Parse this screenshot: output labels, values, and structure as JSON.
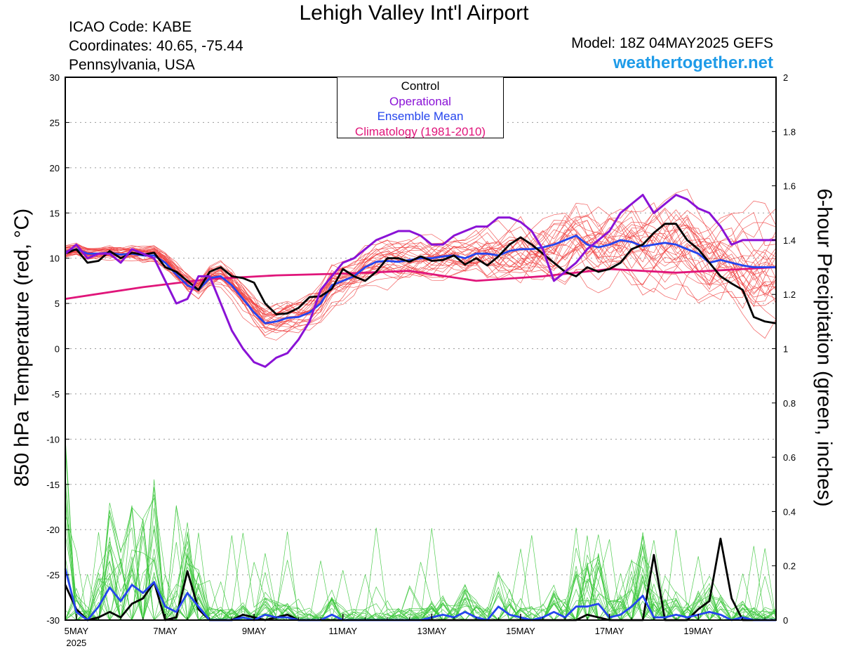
{
  "header": {
    "title": "Lehigh Valley Int'l Airport",
    "icao": "ICAO Code: KABE",
    "coords": "Coordinates: 40.65, -75.44",
    "region": "Pennsylvania, USA",
    "model": "Model: 18Z 04MAY2025 GEFS",
    "site": "weathertogether.net"
  },
  "legend": {
    "items": [
      {
        "label": "Control",
        "color": "#000000"
      },
      {
        "label": "Operational",
        "color": "#8a12d6"
      },
      {
        "label": "Ensemble Mean",
        "color": "#2444ee"
      },
      {
        "label": "Climatology (1981-2010)",
        "color": "#e0157a"
      }
    ]
  },
  "chart_data": {
    "type": "line",
    "ylabel": "850 hPa Temperature (red, °C)",
    "y2label": "6-hour Precipitation (green, inches)",
    "ylim": [
      -30,
      30
    ],
    "y2lim": [
      0,
      2
    ],
    "y_ticks": [
      "30",
      "25",
      "20",
      "15",
      "10",
      "5",
      "0",
      "-5",
      "-10",
      "-15",
      "-20",
      "-25",
      "-30"
    ],
    "y2_ticks": [
      "2",
      "1.8",
      "1.6",
      "1.4",
      "1.2",
      "1",
      "0.8",
      "0.6",
      "0.4",
      "0.2",
      "0"
    ],
    "x_ticks": [
      {
        "day": 0,
        "label": "5MAY",
        "sub": "2025"
      },
      {
        "day": 2,
        "label": "7MAY"
      },
      {
        "day": 4,
        "label": "9MAY"
      },
      {
        "day": 6,
        "label": "11MAY"
      },
      {
        "day": 8,
        "label": "13MAY"
      },
      {
        "day": 10,
        "label": "15MAY"
      },
      {
        "day": 12,
        "label": "17MAY"
      },
      {
        "day": 14,
        "label": "19MAY"
      }
    ],
    "x_range_days": [
      -0.25,
      15.75
    ],
    "grid": "dotted horizontal",
    "colors": {
      "members": "#f04040",
      "precip_members": "#3ec83e",
      "control": "#000000",
      "operational": "#8a12d6",
      "mean": "#2444ee",
      "climatology": "#e0157a"
    },
    "temperature_series": [
      {
        "name": "Control",
        "color": "#000000",
        "x": [
          -0.25,
          0,
          0.25,
          0.5,
          0.75,
          1,
          1.25,
          1.5,
          1.75,
          2,
          2.25,
          2.5,
          2.75,
          3,
          3.25,
          3.5,
          3.75,
          4,
          4.25,
          4.5,
          4.75,
          5,
          5.25,
          5.5,
          5.75,
          6,
          6.25,
          6.5,
          6.75,
          7,
          7.25,
          7.5,
          7.75,
          8,
          8.25,
          8.5,
          8.75,
          9,
          9.25,
          9.5,
          9.75,
          10,
          10.25,
          10.5,
          10.75,
          11,
          11.25,
          11.5,
          11.75,
          12,
          12.25,
          12.5,
          12.75,
          13,
          13.25,
          13.5,
          13.75,
          14,
          14.25,
          14.5,
          14.75,
          15,
          15.25,
          15.5,
          15.75
        ],
        "y": [
          10.5,
          11,
          9.5,
          9.7,
          10.8,
          10,
          10.6,
          10.4,
          10.6,
          9,
          8.5,
          7.5,
          6.5,
          8.5,
          9,
          8,
          7.8,
          7.3,
          5,
          3.8,
          3.9,
          4.5,
          5.7,
          5.8,
          6.6,
          8.8,
          8,
          7.5,
          8.5,
          10,
          10,
          9.6,
          10.2,
          9.7,
          9.8,
          10.3,
          9.3,
          10,
          9.2,
          10.2,
          11.5,
          12.3,
          11.5,
          10.5,
          9.5,
          8.5,
          8,
          9,
          8.5,
          8.8,
          9.5,
          11,
          11.5,
          12.8,
          13.8,
          13.8,
          12,
          11,
          9.5,
          8,
          7.2,
          6.5,
          3.5,
          3,
          2.8
        ]
      },
      {
        "name": "Operational",
        "color": "#8a12d6",
        "x": [
          -0.25,
          0,
          0.25,
          0.5,
          0.75,
          1,
          1.25,
          1.5,
          1.75,
          2,
          2.25,
          2.5,
          2.75,
          3,
          3.25,
          3.5,
          3.75,
          4,
          4.25,
          4.5,
          4.75,
          5,
          5.25,
          5.5,
          5.75,
          6,
          6.25,
          6.5,
          6.75,
          7,
          7.25,
          7.5,
          7.75,
          8,
          8.25,
          8.5,
          8.75,
          9,
          9.25,
          9.5,
          9.75,
          10,
          10.25,
          10.5,
          10.75,
          11,
          11.25,
          11.5,
          11.75,
          12,
          12.25,
          12.5,
          12.75,
          13,
          13.25,
          13.5,
          13.75,
          14,
          14.25,
          14.5,
          14.75,
          15,
          15.25,
          15.5,
          15.75
        ],
        "y": [
          10.5,
          11.5,
          10,
          10.5,
          10.5,
          9.5,
          11,
          10.5,
          10,
          7.5,
          5,
          5.5,
          8,
          8,
          5,
          2,
          0,
          -1.5,
          -2,
          -1,
          -0.5,
          1,
          3,
          6.5,
          8,
          9.5,
          10,
          11,
          12,
          12.5,
          13,
          13,
          12.5,
          11.5,
          11.5,
          12.5,
          13,
          13.5,
          13.5,
          14.5,
          14.5,
          14,
          13,
          11,
          7.5,
          8.5,
          9.5,
          11,
          12,
          13,
          15,
          16,
          17,
          15,
          16,
          17,
          16.5,
          15.5,
          15,
          13.5,
          11.5,
          12,
          12,
          12,
          12
        ]
      },
      {
        "name": "Ensemble Mean",
        "color": "#2444ee",
        "x": [
          -0.25,
          0,
          0.25,
          0.5,
          0.75,
          1,
          1.25,
          1.5,
          1.75,
          2,
          2.25,
          2.5,
          2.75,
          3,
          3.25,
          3.5,
          3.75,
          4,
          4.25,
          4.5,
          4.75,
          5,
          5.25,
          5.5,
          5.75,
          6,
          6.25,
          6.5,
          6.75,
          7,
          7.25,
          7.5,
          7.75,
          8,
          8.25,
          8.5,
          8.75,
          9,
          9.25,
          9.5,
          9.75,
          10,
          10.25,
          10.5,
          10.75,
          11,
          11.25,
          11.5,
          11.75,
          12,
          12.25,
          12.5,
          12.75,
          13,
          13.25,
          13.5,
          13.75,
          14,
          14.25,
          14.5,
          14.75,
          15,
          15.25,
          15.5,
          15.75
        ],
        "y": [
          10.7,
          11,
          10.5,
          10.5,
          10.6,
          10.4,
          10.5,
          10.3,
          10.3,
          9.5,
          8.2,
          7,
          6.5,
          7.8,
          8,
          7,
          5.5,
          4,
          2.8,
          3,
          3.4,
          3.5,
          4,
          5,
          7,
          7.5,
          8,
          9,
          9.6,
          9.7,
          9.6,
          9.8,
          10,
          10,
          10.2,
          10.3,
          10,
          10.5,
          10.5,
          10.3,
          10.8,
          11,
          11,
          11.2,
          11.5,
          12,
          12.5,
          11.5,
          11.2,
          11.5,
          12,
          11.8,
          11.3,
          11.5,
          11.7,
          11.5,
          11,
          10.5,
          9.5,
          9.8,
          9.5,
          9.2,
          9,
          9,
          9
        ]
      },
      {
        "name": "Climatology (1981-2010)",
        "color": "#e0157a",
        "x": [
          -0.25,
          1.5,
          3,
          4.5,
          6,
          7.5,
          9,
          10.5,
          12,
          13.5,
          15,
          15.75
        ],
        "y": [
          5.5,
          6.8,
          7.7,
          8.1,
          8.3,
          8.6,
          7.5,
          8,
          8.8,
          8.4,
          8.8,
          9
        ]
      }
    ],
    "precip_series": [
      {
        "name": "Control",
        "color": "#000000",
        "x": [
          -0.25,
          0,
          0.25,
          0.5,
          0.75,
          1,
          1.25,
          1.5,
          1.75,
          2,
          2.25,
          2.5,
          2.75,
          3,
          3.25,
          3.5,
          3.75,
          4,
          4.25,
          4.5,
          4.75,
          5,
          5.25,
          5.5,
          5.75,
          6,
          6.25,
          6.5,
          6.75,
          7,
          7.25,
          7.5,
          7.75,
          8,
          8.25,
          8.5,
          8.75,
          9,
          9.25,
          9.5,
          9.75,
          10,
          10.25,
          10.5,
          10.75,
          11,
          11.25,
          11.5,
          11.75,
          12,
          12.25,
          12.5,
          12.75,
          13,
          13.25,
          13.5,
          13.75,
          14,
          14.25,
          14.5,
          14.75,
          15,
          15.25,
          15.5,
          15.75
        ],
        "y": [
          0.13,
          0.04,
          0,
          0.01,
          0.03,
          0.01,
          0.06,
          0.08,
          0.14,
          0,
          0.01,
          0.18,
          0.04,
          0,
          0,
          0,
          0.02,
          0.01,
          0,
          0.01,
          0.02,
          0,
          0,
          0,
          0,
          0,
          0,
          0,
          0,
          0,
          0,
          0,
          0,
          0,
          0,
          0,
          0,
          0,
          0,
          0,
          0,
          0,
          0,
          0,
          0,
          0,
          0,
          0.02,
          0.01,
          0,
          0,
          0,
          0,
          0.24,
          0,
          0,
          0,
          0.04,
          0.07,
          0.3,
          0.08,
          0,
          0,
          0,
          0
        ]
      },
      {
        "name": "Ensemble Mean",
        "color": "#2444ee",
        "x": [
          -0.25,
          0,
          0.25,
          0.5,
          0.75,
          1,
          1.25,
          1.5,
          1.75,
          2,
          2.25,
          2.5,
          2.75,
          3,
          3.25,
          3.5,
          3.75,
          4,
          4.25,
          4.5,
          4.75,
          5,
          5.25,
          5.5,
          5.75,
          6,
          6.25,
          6.5,
          6.75,
          7,
          7.25,
          7.5,
          7.75,
          8,
          8.25,
          8.5,
          8.75,
          9,
          9.25,
          9.5,
          9.75,
          10,
          10.25,
          10.5,
          10.75,
          11,
          11.25,
          11.5,
          11.75,
          12,
          12.25,
          12.5,
          12.75,
          13,
          13.25,
          13.5,
          13.75,
          14,
          14.25,
          14.5,
          14.75,
          15,
          15.25,
          15.5,
          15.75
        ],
        "y": [
          0.19,
          0.03,
          0,
          0.05,
          0.12,
          0.07,
          0.13,
          0.1,
          0.14,
          0.05,
          0.03,
          0.1,
          0.05,
          0,
          0,
          0,
          0.01,
          0,
          0.02,
          0.01,
          0.01,
          0,
          0,
          0,
          0.02,
          0,
          0,
          0,
          0,
          0,
          0,
          0,
          0,
          0.01,
          0.02,
          0.01,
          0.03,
          0.01,
          0,
          0.05,
          0.02,
          0.01,
          0,
          0.01,
          0.03,
          0.01,
          0.05,
          0.05,
          0.06,
          0.01,
          0.02,
          0.05,
          0.09,
          0.01,
          0.01,
          0.02,
          0.01,
          0.02,
          0.03,
          0.02,
          0,
          0.01,
          0,
          0,
          0
        ]
      }
    ]
  }
}
